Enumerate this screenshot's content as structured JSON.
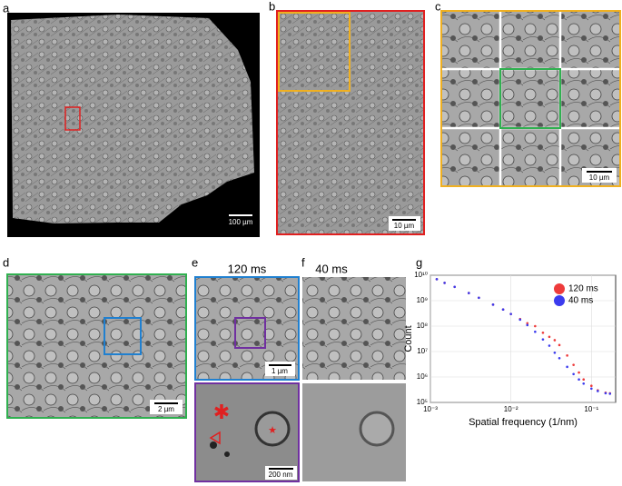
{
  "panels": {
    "a": {
      "label": "a",
      "scale_bar": "100 µm"
    },
    "b": {
      "label": "b",
      "scale_bar": "10 µm"
    },
    "c": {
      "label": "c",
      "scale_bar": "10 µm"
    },
    "d": {
      "label": "d",
      "scale_bar": "2 µm"
    },
    "e": {
      "label": "e",
      "title": "120 ms",
      "scale_bar_top": "1 µm",
      "scale_bar_bottom": "200 nm"
    },
    "f": {
      "label": "f",
      "title": "40 ms"
    },
    "g": {
      "label": "g"
    }
  },
  "chart_data": {
    "type": "scatter",
    "xlabel": "Spatial frequency (1/nm)",
    "ylabel": "Count",
    "xscale": "log",
    "yscale": "log",
    "grid": true,
    "legend": "upper right",
    "xlim": [
      0.001,
      0.2
    ],
    "ylim": [
      100000,
      10000000000
    ],
    "xticks": [
      {
        "value": 0.001,
        "label": "10⁻³"
      },
      {
        "value": 0.01,
        "label": "10⁻²"
      },
      {
        "value": 0.1,
        "label": "10⁻¹"
      }
    ],
    "yticks": [
      {
        "value": 100000,
        "label": "10⁵"
      },
      {
        "value": 1000000,
        "label": "10⁶"
      },
      {
        "value": 10000000,
        "label": "10⁷"
      },
      {
        "value": 100000000,
        "label": "10⁸"
      },
      {
        "value": 1000000000,
        "label": "10⁹"
      },
      {
        "value": 10000000000,
        "label": "10¹⁰"
      }
    ],
    "x": [
      0.0012,
      0.0015,
      0.002,
      0.003,
      0.004,
      0.006,
      0.008,
      0.01,
      0.013,
      0.016,
      0.02,
      0.025,
      0.03,
      0.035,
      0.04,
      0.05,
      0.06,
      0.07,
      0.08,
      0.1,
      0.12,
      0.15,
      0.17
    ],
    "series": [
      {
        "name": "120 ms",
        "color": "#ee3b3b",
        "values": [
          7000000000,
          5000000000,
          3500000000,
          2000000000,
          1300000000,
          700000000,
          450000000,
          300000000,
          190000000,
          130000000,
          100000000,
          55000000,
          38000000,
          28000000,
          18000000,
          7000000,
          3000000,
          1500000,
          800000,
          450000,
          300000,
          240000,
          230000
        ]
      },
      {
        "name": "40 ms",
        "color": "#3b3bee",
        "values": [
          7000000000,
          5000000000,
          3500000000,
          2000000000,
          1300000000,
          700000000,
          450000000,
          300000000,
          180000000,
          110000000,
          60000000,
          30000000,
          17000000,
          9000000,
          5500000,
          2500000,
          1300000,
          800000,
          550000,
          350000,
          280000,
          230000,
          220000
        ]
      }
    ]
  }
}
